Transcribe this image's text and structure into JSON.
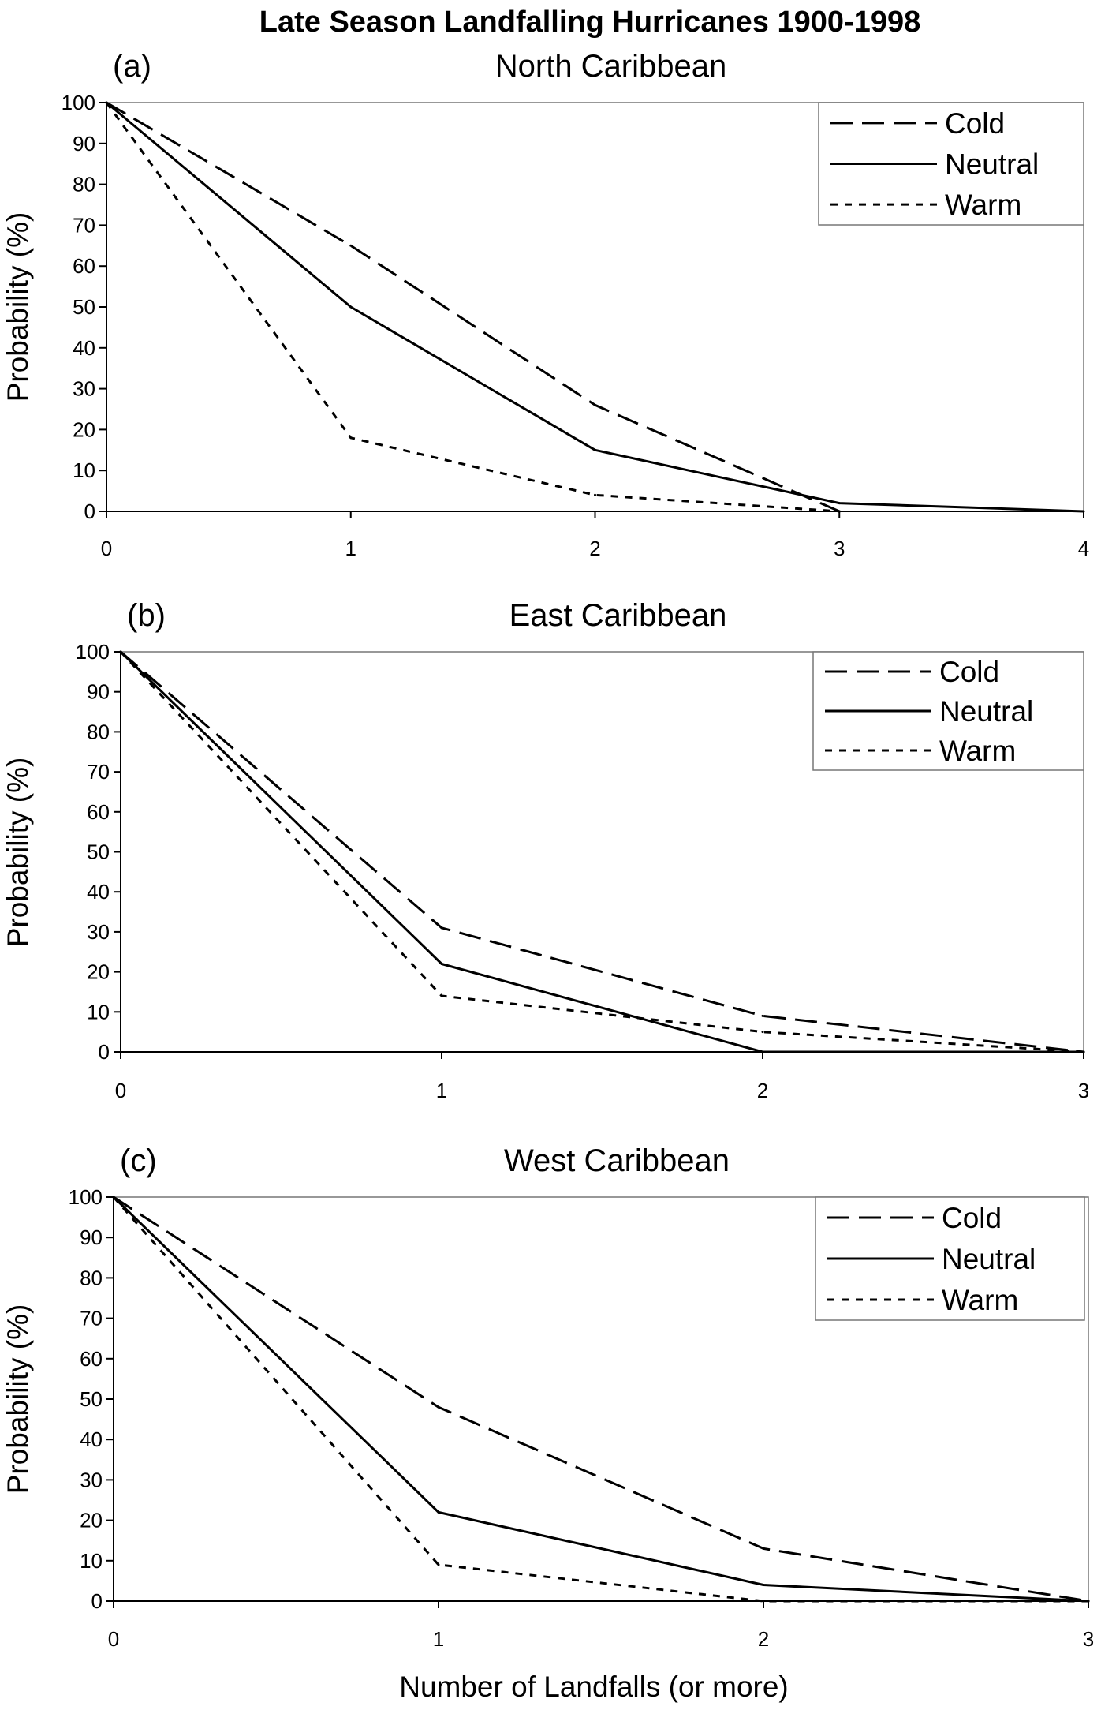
{
  "figure": {
    "title": "Late Season Landfalling Hurricanes 1900-1998",
    "xlabel": "Number of Landfalls (or more)"
  },
  "colors": {
    "line": "#000000",
    "background": "#ffffff"
  },
  "chart_data": [
    {
      "type": "line",
      "tag": "(a)",
      "title": "North Caribbean",
      "xlabel": "",
      "ylabel": "Probability (%)",
      "x": [
        0,
        1,
        2,
        3,
        4
      ],
      "xlim": [
        0,
        4
      ],
      "ylim": [
        0,
        100
      ],
      "yticks": [
        0,
        10,
        20,
        30,
        40,
        50,
        60,
        70,
        80,
        90,
        100
      ],
      "grid": false,
      "legend": "top-right",
      "series": [
        {
          "name": "Cold",
          "style": "long-dash",
          "values": [
            100,
            65,
            26,
            0,
            null
          ]
        },
        {
          "name": "Neutral",
          "style": "solid",
          "values": [
            100,
            50,
            15,
            2,
            0
          ]
        },
        {
          "name": "Warm",
          "style": "short-dash",
          "values": [
            100,
            18,
            4,
            0,
            null
          ]
        }
      ]
    },
    {
      "type": "line",
      "tag": "(b)",
      "title": "East Caribbean",
      "xlabel": "",
      "ylabel": "Probability (%)",
      "x": [
        0,
        1,
        2,
        3
      ],
      "xlim": [
        0,
        3
      ],
      "ylim": [
        0,
        100
      ],
      "yticks": [
        0,
        10,
        20,
        30,
        40,
        50,
        60,
        70,
        80,
        90,
        100
      ],
      "grid": false,
      "legend": "top-right",
      "series": [
        {
          "name": "Cold",
          "style": "long-dash",
          "values": [
            100,
            31,
            9,
            0
          ]
        },
        {
          "name": "Neutral",
          "style": "solid",
          "values": [
            100,
            22,
            0,
            0
          ]
        },
        {
          "name": "Warm",
          "style": "short-dash",
          "values": [
            100,
            14,
            5,
            0
          ]
        }
      ]
    },
    {
      "type": "line",
      "tag": "(c)",
      "title": "West Caribbean",
      "xlabel": "Number of Landfalls (or more)",
      "ylabel": "Probability (%)",
      "x": [
        0,
        1,
        2,
        3
      ],
      "xlim": [
        0,
        3
      ],
      "ylim": [
        0,
        100
      ],
      "yticks": [
        0,
        10,
        20,
        30,
        40,
        50,
        60,
        70,
        80,
        90,
        100
      ],
      "grid": false,
      "legend": "top-right",
      "series": [
        {
          "name": "Cold",
          "style": "long-dash",
          "values": [
            100,
            48,
            13,
            0
          ]
        },
        {
          "name": "Neutral",
          "style": "solid",
          "values": [
            100,
            22,
            4,
            0
          ]
        },
        {
          "name": "Warm",
          "style": "short-dash",
          "values": [
            100,
            9,
            0,
            0
          ]
        }
      ]
    }
  ]
}
